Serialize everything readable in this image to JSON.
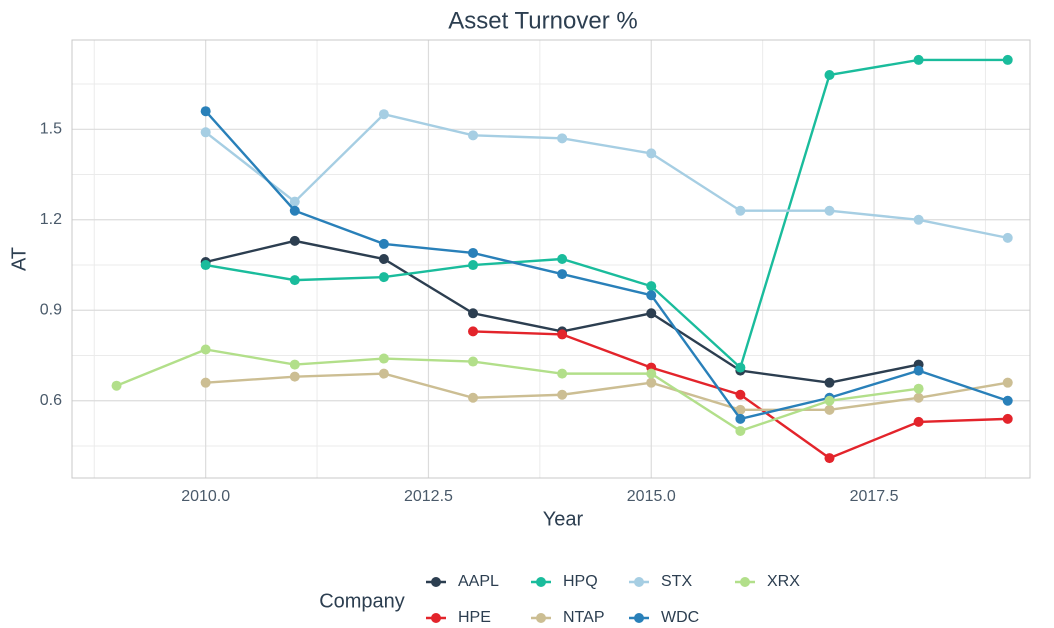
{
  "chart_data": {
    "type": "line",
    "title": "Asset Turnover %",
    "x_label": "Year",
    "y_label": "AT",
    "legend_title": "Company",
    "legend": "bottom",
    "grid": true,
    "x": [
      2009,
      2010,
      2011,
      2012,
      2013,
      2014,
      2015,
      2016,
      2017,
      2018,
      2019
    ],
    "xlim": [
      2008.5,
      2019.25
    ],
    "ylim": [
      0.344,
      1.796
    ],
    "xticks": [
      {
        "value": 2010,
        "label": "2010.0"
      },
      {
        "value": 2012.5,
        "label": "2012.5"
      },
      {
        "value": 2015,
        "label": "2015.0"
      },
      {
        "value": 2017.5,
        "label": "2017.5"
      }
    ],
    "yticks": [
      0.6,
      0.9,
      1.2,
      1.5
    ],
    "xminor_ticks": [
      2008.75,
      2011.25,
      2013.75,
      2016.25,
      2018.75
    ],
    "yminor_ticks": [
      0.45,
      0.75,
      1.05,
      1.35,
      1.65
    ],
    "series": [
      {
        "name": "AAPL",
        "color": "#2c3e50",
        "values": [
          null,
          1.06,
          1.13,
          1.07,
          0.89,
          0.83,
          0.89,
          0.7,
          0.66,
          0.72,
          null
        ]
      },
      {
        "name": "HPE",
        "color": "#e3242b",
        "values": [
          null,
          null,
          null,
          null,
          0.83,
          0.82,
          0.71,
          0.62,
          0.41,
          0.53,
          0.54
        ]
      },
      {
        "name": "HPQ",
        "color": "#1abc9c",
        "values": [
          null,
          1.05,
          1.0,
          1.01,
          1.05,
          1.07,
          0.98,
          0.71,
          1.68,
          1.73,
          1.73
        ]
      },
      {
        "name": "NTAP",
        "color": "#ccbe93",
        "values": [
          null,
          0.66,
          0.68,
          0.69,
          0.61,
          0.62,
          0.66,
          0.57,
          0.57,
          0.61,
          0.66
        ]
      },
      {
        "name": "STX",
        "color": "#a6cee3",
        "values": [
          null,
          1.49,
          1.26,
          1.55,
          1.48,
          1.47,
          1.42,
          1.23,
          1.23,
          1.2,
          1.14
        ]
      },
      {
        "name": "WDC",
        "color": "#2980b9",
        "values": [
          null,
          1.56,
          1.23,
          1.12,
          1.09,
          1.02,
          0.95,
          0.54,
          0.61,
          0.7,
          0.6
        ]
      },
      {
        "name": "XRX",
        "color": "#b2df8a",
        "values": [
          0.65,
          0.77,
          0.72,
          0.74,
          0.73,
          0.69,
          0.69,
          0.5,
          0.6,
          0.64,
          null
        ]
      }
    ]
  }
}
